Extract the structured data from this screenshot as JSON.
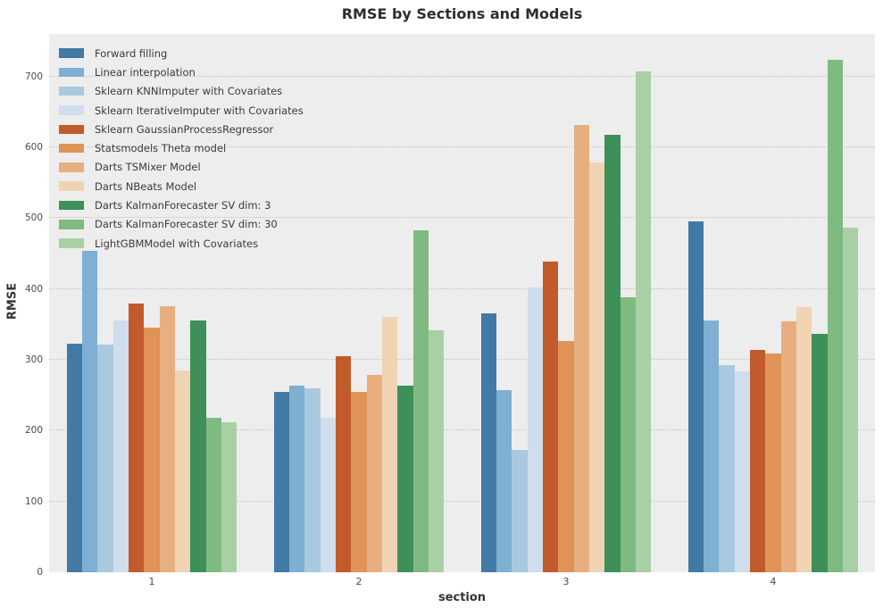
{
  "title": "RMSE by Sections and Models",
  "chart_data": {
    "type": "bar",
    "title": "RMSE by Sections and Models",
    "xlabel": "section",
    "ylabel": "RMSE",
    "categories": [
      "1",
      "2",
      "3",
      "4"
    ],
    "series": [
      {
        "name": "Forward filling",
        "color": "#4279a5",
        "values": [
          323,
          254,
          366,
          495
        ]
      },
      {
        "name": "Linear interpolation",
        "color": "#7fafd2",
        "values": [
          454,
          263,
          257,
          355
        ]
      },
      {
        "name": "Sklearn KNNImputer with Covariates",
        "color": "#a9c9de",
        "values": [
          321,
          260,
          173,
          293
        ]
      },
      {
        "name": "Sklearn IterativeImputer with Covariates",
        "color": "#cfdded",
        "values": [
          355,
          218,
          402,
          284
        ]
      },
      {
        "name": "Sklearn GaussianProcessRegressor",
        "color": "#c25b2b",
        "values": [
          380,
          305,
          438,
          314
        ]
      },
      {
        "name": "Statsmodels Theta model",
        "color": "#e09357",
        "values": [
          345,
          255,
          327,
          309
        ]
      },
      {
        "name": "Darts TSMixer Model",
        "color": "#e7af80",
        "values": [
          375,
          279,
          631,
          354
        ]
      },
      {
        "name": "Darts NBeats Model",
        "color": "#f0d3b2",
        "values": [
          285,
          360,
          578,
          374
        ]
      },
      {
        "name": "Darts KalmanForecaster SV dim: 3",
        "color": "#3f8f5a",
        "values": [
          355,
          263,
          617,
          336
        ]
      },
      {
        "name": "Darts KalmanForecaster SV dim: 30",
        "color": "#7fba81",
        "values": [
          218,
          483,
          388,
          723
        ]
      },
      {
        "name": "LightGBMModel with Covariates",
        "color": "#a9d0a4",
        "values": [
          212,
          341,
          707,
          487
        ]
      }
    ],
    "yticks": [
      0,
      100,
      200,
      300,
      400,
      500,
      600,
      700
    ],
    "ylim": [
      0,
      760
    ],
    "grid": true,
    "legend_position": "upper-left",
    "plot_background": "#ededed",
    "grid_color": "#c2c2c2"
  }
}
